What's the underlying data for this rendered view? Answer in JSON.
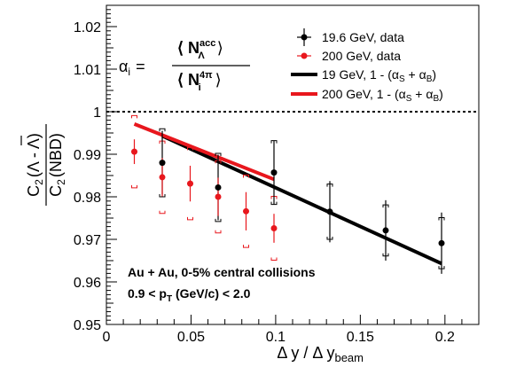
{
  "chart_data": {
    "type": "scatter",
    "title": "",
    "xlabel": "Δ y / Δ y",
    "xlabel_sub": "beam",
    "ylabel": {
      "numerator": "C",
      "numerator_sub": "2",
      "numerator_paren": "(Λ - Λ)",
      "denominator": "C",
      "denominator_sub": "2",
      "denominator_paren": "(NBD)"
    },
    "xlim": [
      0,
      0.22
    ],
    "ylim": [
      0.95,
      1.025
    ],
    "xticks": [
      0,
      0.05,
      0.1,
      0.15,
      0.2
    ],
    "xtick_labels": [
      "0",
      "0.05",
      "0.1",
      "0.15",
      "0.2"
    ],
    "yticks": [
      0.95,
      0.96,
      0.97,
      0.98,
      0.99,
      1,
      1.01,
      1.02
    ],
    "ytick_labels": [
      "0.95",
      "0.96",
      "0.97",
      "0.98",
      "0.99",
      "1",
      "1.01",
      "1.02"
    ],
    "reference_line": {
      "y": 1,
      "style": "dotted",
      "color": "#000000"
    },
    "formula": {
      "lhs": "α",
      "lhs_sub": "i",
      "equals": "=",
      "num": "⟨ N",
      "num_sup": "acc",
      "num_sub": "Λ",
      "num_close": "⟩",
      "den": "⟨ N",
      "den_sup": "4π",
      "den_sub": "i",
      "den_close": "⟩"
    },
    "series": [
      {
        "name": "19.6 GeV, data",
        "marker": "circle",
        "color": "#000000",
        "x": [
          0.033,
          0.066,
          0.099,
          0.132,
          0.165,
          0.198
        ],
        "y": [
          0.988,
          0.9822,
          0.9857,
          0.9765,
          0.9721,
          0.9691
        ],
        "err": [
          0.0075,
          0.0077,
          0.0075,
          0.0072,
          0.0071,
          0.0072
        ],
        "sys": [
          0.008,
          0.008,
          0.0075,
          0.0065,
          0.006,
          0.006
        ]
      },
      {
        "name": "200 GeV, data",
        "marker": "circle",
        "color": "#e8171d",
        "x": [
          0.0165,
          0.033,
          0.0495,
          0.066,
          0.0825,
          0.099
        ],
        "y": [
          0.9906,
          0.9846,
          0.9831,
          0.98,
          0.9766,
          0.9726
        ],
        "err": [
          0.0029,
          0.0045,
          0.0042,
          0.0045,
          0.0045,
          0.0034
        ],
        "sys": [
          0.0085,
          0.0085,
          0.0085,
          0.0085,
          0.0085,
          0.0075
        ]
      },
      {
        "name": "19 GeV, 1 - (α",
        "name_sub1": "S",
        "name_mid": " + α",
        "name_sub2": "B",
        "name_end": ")",
        "type": "line",
        "color": "#000000",
        "x": [
          0.033,
          0.198
        ],
        "y": [
          0.9943,
          0.9643
        ]
      },
      {
        "name": "200 GeV, 1 - (α",
        "name_sub1": "S",
        "name_mid": " + α",
        "name_sub2": "B",
        "name_end": ")",
        "type": "line",
        "color": "#e8171d",
        "x": [
          0.0165,
          0.099
        ],
        "y": [
          0.9971,
          0.9841
        ]
      }
    ],
    "annotations": [
      "Au + Au, 0-5% central collisions",
      "0.9 < p",
      "T",
      " (GeV/c) < 2.0"
    ],
    "grid": false,
    "legend_position": "top-right"
  }
}
